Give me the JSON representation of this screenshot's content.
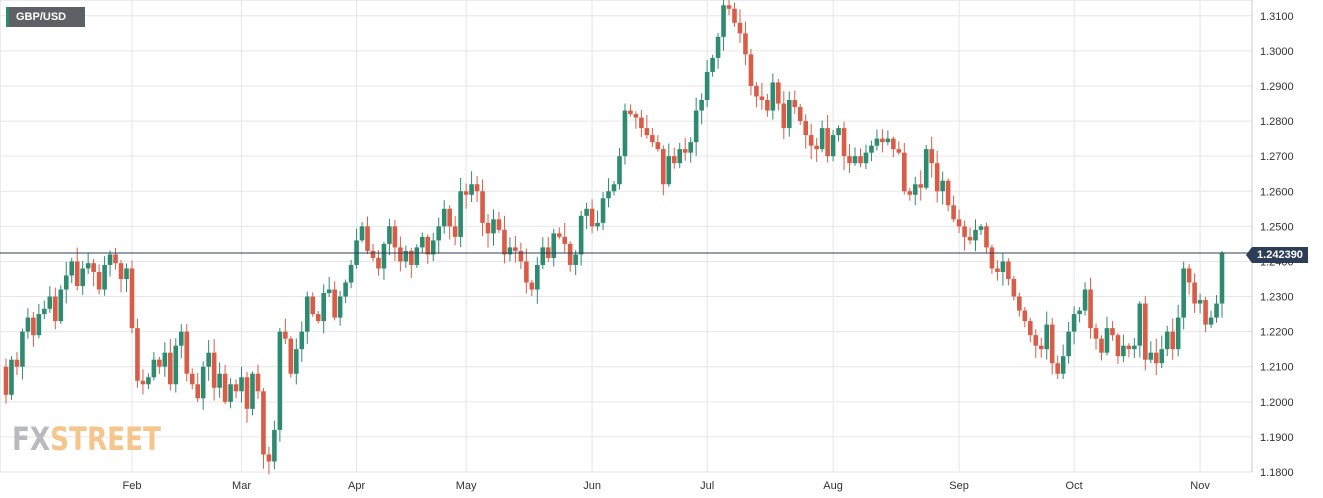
{
  "instrument": "GBP/USD",
  "current_price_label": "1.242390",
  "watermark": {
    "part1": "FX",
    "part2": "STREET"
  },
  "colors": {
    "up": "#2e8b70",
    "down": "#d95c47",
    "grid": "#e6e6e9",
    "price_line": "#2c3d57"
  },
  "chart_data": {
    "type": "candlestick",
    "title": "GBP/USD",
    "ylim": [
      1.18,
      1.3145
    ],
    "y_ticks": [
      "1.1800",
      "1.1900",
      "1.2000",
      "1.2100",
      "1.2200",
      "1.2300",
      "1.2400",
      "1.2500",
      "1.2600",
      "1.2700",
      "1.2800",
      "1.2900",
      "1.3000",
      "1.3100"
    ],
    "x_ticks": [
      {
        "label": "Feb",
        "index": 23
      },
      {
        "label": "Mar",
        "index": 43
      },
      {
        "label": "Apr",
        "index": 64
      },
      {
        "label": "May",
        "index": 84
      },
      {
        "label": "Jun",
        "index": 107
      },
      {
        "label": "Jul",
        "index": 128
      },
      {
        "label": "Aug",
        "index": 151
      },
      {
        "label": "Sep",
        "index": 174
      },
      {
        "label": "Oct",
        "index": 195
      },
      {
        "label": "Nov",
        "index": 218
      }
    ],
    "current_price": 1.24239,
    "closes": [
      1.202,
      1.212,
      1.21,
      1.22,
      1.224,
      1.219,
      1.225,
      1.2265,
      1.23,
      1.223,
      1.232,
      1.236,
      1.24,
      1.233,
      1.238,
      1.2395,
      1.237,
      1.232,
      1.239,
      1.242,
      1.2395,
      1.235,
      1.238,
      1.221,
      1.206,
      1.205,
      1.207,
      1.212,
      1.21,
      1.214,
      1.205,
      1.216,
      1.22,
      1.208,
      1.205,
      1.201,
      1.21,
      1.214,
      1.204,
      1.208,
      1.2,
      1.205,
      1.203,
      1.207,
      1.198,
      1.208,
      1.203,
      1.185,
      1.183,
      1.192,
      1.22,
      1.218,
      1.208,
      1.215,
      1.22,
      1.23,
      1.225,
      1.223,
      1.231,
      1.232,
      1.224,
      1.23,
      1.234,
      1.239,
      1.246,
      1.25,
      1.243,
      1.241,
      1.238,
      1.245,
      1.25,
      1.244,
      1.24,
      1.243,
      1.239,
      1.244,
      1.247,
      1.242,
      1.246,
      1.25,
      1.255,
      1.25,
      1.247,
      1.26,
      1.259,
      1.262,
      1.26,
      1.251,
      1.248,
      1.252,
      1.249,
      1.242,
      1.244,
      1.243,
      1.24,
      1.234,
      1.232,
      1.239,
      1.244,
      1.241,
      1.248,
      1.247,
      1.245,
      1.239,
      1.242,
      1.253,
      1.255,
      1.25,
      1.251,
      1.258,
      1.26,
      1.262,
      1.27,
      1.283,
      1.282,
      1.281,
      1.278,
      1.276,
      1.274,
      1.272,
      1.262,
      1.27,
      1.268,
      1.272,
      1.271,
      1.274,
      1.283,
      1.286,
      1.294,
      1.298,
      1.304,
      1.313,
      1.312,
      1.308,
      1.305,
      1.299,
      1.29,
      1.287,
      1.286,
      1.283,
      1.291,
      1.285,
      1.278,
      1.286,
      1.284,
      1.28,
      1.276,
      1.273,
      1.272,
      1.278,
      1.27,
      1.276,
      1.278,
      1.27,
      1.268,
      1.27,
      1.268,
      1.271,
      1.273,
      1.275,
      1.274,
      1.275,
      1.272,
      1.271,
      1.26,
      1.259,
      1.262,
      1.261,
      1.272,
      1.268,
      1.26,
      1.263,
      1.256,
      1.252,
      1.25,
      1.247,
      1.246,
      1.249,
      1.25,
      1.244,
      1.238,
      1.237,
      1.24,
      1.235,
      1.23,
      1.226,
      1.223,
      1.219,
      1.216,
      1.215,
      1.222,
      1.211,
      1.208,
      1.213,
      1.22,
      1.225,
      1.226,
      1.232,
      1.221,
      1.218,
      1.214,
      1.221,
      1.219,
      1.213,
      1.216,
      1.215,
      1.216,
      1.228,
      1.212,
      1.214,
      1.211,
      1.215,
      1.22,
      1.215,
      1.224,
      1.238,
      1.234,
      1.228,
      1.229,
      1.222,
      1.224,
      1.228,
      1.2424
    ]
  }
}
